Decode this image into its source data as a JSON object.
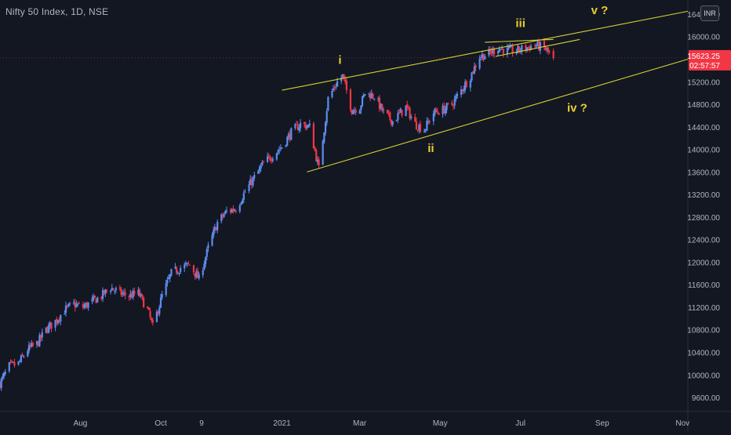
{
  "header": {
    "title": "Nifty 50 Index, 1D, NSE",
    "currency": "INR"
  },
  "price_badge": {
    "price": "15623.25",
    "countdown": "02:57:57",
    "color": "#f23645"
  },
  "colors": {
    "background": "#131722",
    "up_candle": "#5b8def",
    "down_candle": "#f23645",
    "trendline": "#d7d034",
    "wave_label": "#e9cf2f",
    "axis_text": "#b2b5be",
    "separator": "#2a2e39"
  },
  "wave_labels": [
    "i",
    "ii",
    "iii",
    "iv  ?",
    "v  ?"
  ],
  "chart_data": {
    "type": "candlestick",
    "title": "Nifty 50 Index, 1D, NSE",
    "y_axis": {
      "position": "right",
      "range": [
        9350,
        16650
      ],
      "ticks": [
        9600,
        10000,
        10400,
        10800,
        11200,
        11600,
        12000,
        12400,
        12800,
        13200,
        13600,
        14000,
        14400,
        14800,
        15200,
        16000,
        16400
      ],
      "tick_labels": [
        "9600.00",
        "10000.00",
        "10400.00",
        "10800.00",
        "11200.00",
        "11600.00",
        "12000.00",
        "12400.00",
        "12800.00",
        "13200.00",
        "13600.00",
        "14000.00",
        "14400.00",
        "14800.00",
        "15200.00",
        "16000.00",
        "16400.00"
      ]
    },
    "x_axis": {
      "range": [
        "2020-06-01",
        "2021-11-05"
      ],
      "ticks": [
        "2020-08-01",
        "2020-10-01",
        "2020-11-01",
        "2021-01-01",
        "2021-03-01",
        "2021-05-01",
        "2021-07-01",
        "2021-09-01",
        "2021-11-01"
      ],
      "tick_labels": [
        "Aug",
        "Oct",
        "9",
        "2021",
        "Mar",
        "May",
        "Jul",
        "Sep",
        "Nov"
      ]
    },
    "price_path": [
      [
        "2020-06-01",
        9850
      ],
      [
        "2020-06-08",
        10150
      ],
      [
        "2020-06-15",
        10200
      ],
      [
        "2020-06-22",
        10450
      ],
      [
        "2020-06-29",
        10550
      ],
      [
        "2020-07-06",
        10800
      ],
      [
        "2020-07-13",
        10950
      ],
      [
        "2020-07-20",
        11150
      ],
      [
        "2020-07-27",
        11250
      ],
      [
        "2020-08-03",
        11200
      ],
      [
        "2020-08-10",
        11300
      ],
      [
        "2020-08-17",
        11400
      ],
      [
        "2020-08-24",
        11550
      ],
      [
        "2020-08-31",
        11450
      ],
      [
        "2020-09-07",
        11400
      ],
      [
        "2020-09-14",
        11450
      ],
      [
        "2020-09-21",
        11150
      ],
      [
        "2020-09-25",
        10850
      ],
      [
        "2020-10-02",
        11400
      ],
      [
        "2020-10-09",
        11800
      ],
      [
        "2020-10-16",
        11900
      ],
      [
        "2020-10-23",
        11950
      ],
      [
        "2020-10-30",
        11700
      ],
      [
        "2020-11-06",
        12250
      ],
      [
        "2020-11-13",
        12700
      ],
      [
        "2020-11-20",
        12900
      ],
      [
        "2020-11-27",
        12950
      ],
      [
        "2020-12-04",
        13250
      ],
      [
        "2020-12-11",
        13500
      ],
      [
        "2020-12-18",
        13750
      ],
      [
        "2020-12-25",
        13900
      ],
      [
        "2021-01-01",
        14050
      ],
      [
        "2021-01-08",
        14300
      ],
      [
        "2021-01-15",
        14450
      ],
      [
        "2021-01-22",
        14400
      ],
      [
        "2021-01-29",
        13650
      ],
      [
        "2021-02-05",
        14900
      ],
      [
        "2021-02-12",
        15200
      ],
      [
        "2021-02-16",
        15300
      ],
      [
        "2021-02-23",
        14700
      ],
      [
        "2021-03-01",
        14750
      ],
      [
        "2021-03-05",
        15000
      ],
      [
        "2021-03-12",
        14950
      ],
      [
        "2021-03-19",
        14650
      ],
      [
        "2021-03-26",
        14500
      ],
      [
        "2021-04-05",
        14750
      ],
      [
        "2021-04-12",
        14450
      ],
      [
        "2021-04-19",
        14350
      ],
      [
        "2021-04-26",
        14650
      ],
      [
        "2021-05-03",
        14700
      ],
      [
        "2021-05-10",
        14800
      ],
      [
        "2021-05-17",
        15050
      ],
      [
        "2021-05-24",
        15300
      ],
      [
        "2021-05-31",
        15650
      ],
      [
        "2021-06-07",
        15700
      ],
      [
        "2021-06-14",
        15800
      ],
      [
        "2021-06-21",
        15750
      ],
      [
        "2021-06-28",
        15750
      ],
      [
        "2021-07-05",
        15800
      ],
      [
        "2021-07-12",
        15850
      ],
      [
        "2021-07-19",
        15800
      ],
      [
        "2021-07-26",
        15623
      ]
    ],
    "trendlines": [
      {
        "name": "wave i to iii upper line",
        "from": [
          "2021-01-01",
          15050
        ],
        "to": [
          "2021-11-05",
          16450
        ]
      },
      {
        "name": "wave ii to iv lower line",
        "from": [
          "2021-01-20",
          13600
        ],
        "to": [
          "2021-11-05",
          15600
        ]
      },
      {
        "name": "ending diagonal upper",
        "from": [
          "2021-06-04",
          15900
        ],
        "to": [
          "2021-07-26",
          15950
        ]
      },
      {
        "name": "ending diagonal lower",
        "from": [
          "2021-06-12",
          15650
        ],
        "to": [
          "2021-08-15",
          15950
        ]
      }
    ],
    "annotations": [
      {
        "text": "i",
        "x": "2021-02-14",
        "y": 15520
      },
      {
        "text": "ii",
        "x": "2021-04-24",
        "y": 13950
      },
      {
        "text": "iii",
        "x": "2021-07-01",
        "y": 16170
      },
      {
        "text": "iv  ?",
        "x": "2021-08-13",
        "y": 14670
      },
      {
        "text": "v  ?",
        "x": "2021-08-30",
        "y": 16400
      }
    ],
    "last_price": 15623.25
  }
}
